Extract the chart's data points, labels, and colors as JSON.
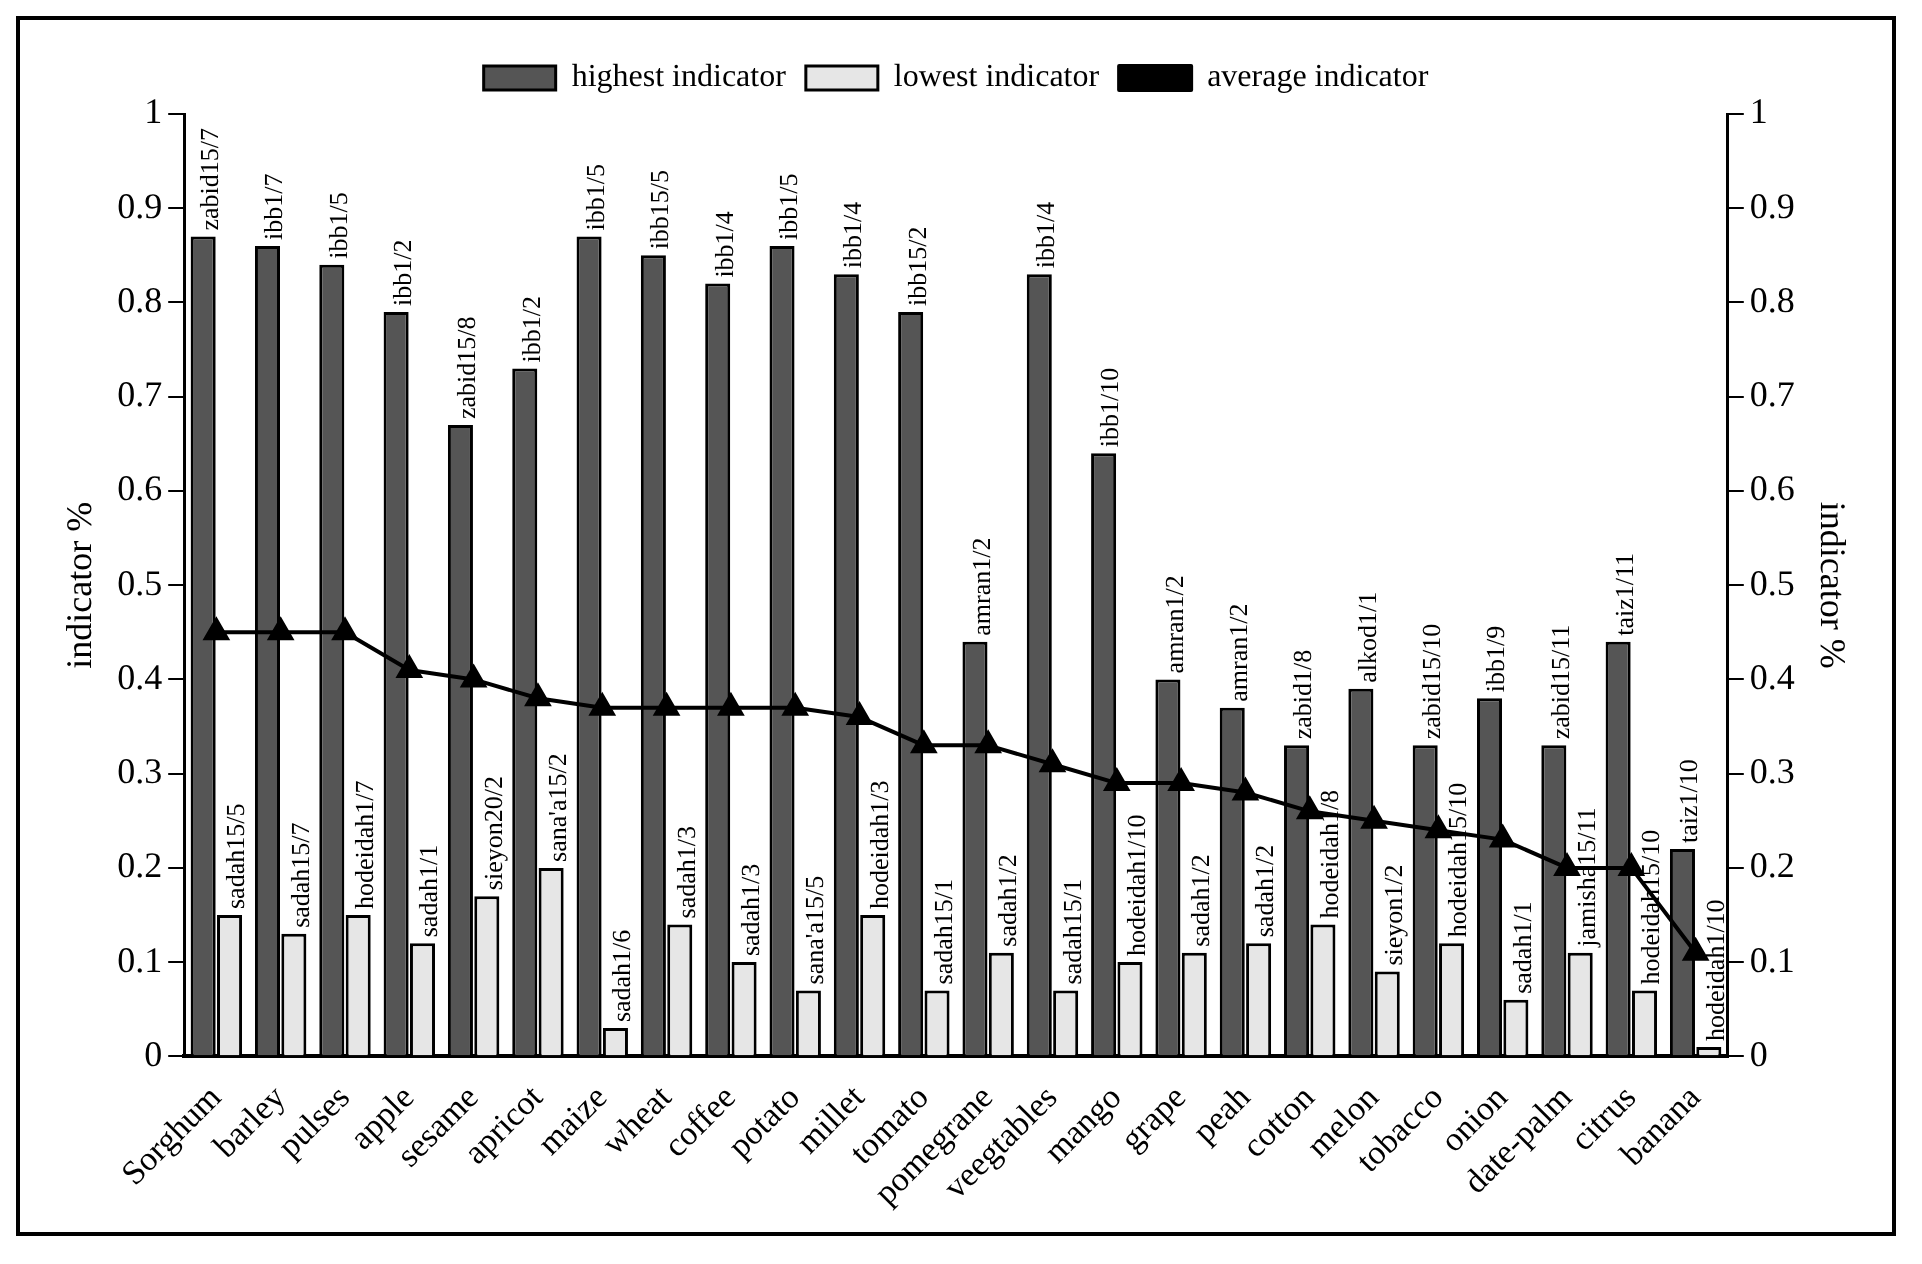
{
  "chart_data": {
    "type": "bar",
    "ylabel": "indicator %",
    "y2label": "indicator %",
    "categories": [
      "Sorghum",
      "barley",
      "pulses",
      "apple",
      "sesame",
      "apricot",
      "maize",
      "wheat",
      "coffee",
      "potato",
      "millet",
      "tomato",
      "pomegrane",
      "veegtables",
      "mango",
      "grape",
      "peah",
      "cotton",
      "melon",
      "tobacco",
      "onion",
      "date-palm",
      "citrus",
      "banana"
    ],
    "series": [
      {
        "name": "highest indicator",
        "color": "#555555",
        "values": [
          0.87,
          0.86,
          0.84,
          0.79,
          0.67,
          0.73,
          0.87,
          0.85,
          0.82,
          0.86,
          0.83,
          0.79,
          0.44,
          0.83,
          0.64,
          0.4,
          0.37,
          0.33,
          0.39,
          0.33,
          0.38,
          0.33,
          0.44,
          0.22
        ],
        "value_labels": [
          "zabid15/7",
          "ibb1/7",
          "ibb1/5",
          "ibb1/2",
          "zabid15/8",
          "ibb1/2",
          "ibb1/5",
          "ibb15/5",
          "ibb1/4",
          "ibb1/5",
          "ibb1/4",
          "ibb15/2",
          "amran1/2",
          "ibb1/4",
          "ibb1/10",
          "amran1/2",
          "amran1/2",
          "zabid1/8",
          "alkod1/1",
          "zabid15/10",
          "ibb1/9",
          "zabid15/11",
          "taiz1/11",
          "taiz1/10"
        ]
      },
      {
        "name": "lowest indicator",
        "color": "#e6e6e6",
        "values": [
          0.15,
          0.13,
          0.15,
          0.12,
          0.17,
          0.2,
          0.03,
          0.14,
          0.1,
          0.07,
          0.15,
          0.07,
          0.11,
          0.07,
          0.1,
          0.11,
          0.12,
          0.14,
          0.09,
          0.12,
          0.06,
          0.11,
          0.07,
          0.01
        ],
        "value_labels": [
          "sadah15/5",
          "sadah15/7",
          "hodeidah1/7",
          "sadah1/1",
          "sieyon20/2",
          "sana'a15/2",
          "sadah1/6",
          "sadah1/3",
          "sadah1/3",
          "sana'a15/5",
          "hodeidah1/3",
          "sadah15/1",
          "sadah1/2",
          "sadah15/1",
          "hodeidah1/10",
          "sadah1/2",
          "sadah1/2",
          "hodeidah1/8",
          "sieyon1/2",
          "hodeidah15/10",
          "sadah1/1",
          "jamisha15/11",
          "hodeidah15/10",
          "hodeidah1/10"
        ]
      },
      {
        "name": "average indicator",
        "type": "line",
        "color": "#000000",
        "marker": "triangle",
        "values": [
          0.45,
          0.45,
          0.45,
          0.41,
          0.4,
          0.38,
          0.37,
          0.37,
          0.37,
          0.37,
          0.36,
          0.33,
          0.33,
          0.31,
          0.29,
          0.29,
          0.28,
          0.26,
          0.25,
          0.24,
          0.23,
          0.2,
          0.2,
          0.11
        ]
      }
    ],
    "ylim": [
      0,
      1
    ],
    "yticks": [
      0,
      0.1,
      0.2,
      0.3,
      0.4,
      0.5,
      0.6,
      0.7,
      0.8,
      0.9,
      1
    ],
    "y2lim": [
      0,
      1
    ],
    "y2ticks": [
      0,
      0.1,
      0.2,
      0.3,
      0.4,
      0.5,
      0.6,
      0.7,
      0.8,
      0.9,
      1
    ],
    "legend": "top",
    "grid": false
  }
}
